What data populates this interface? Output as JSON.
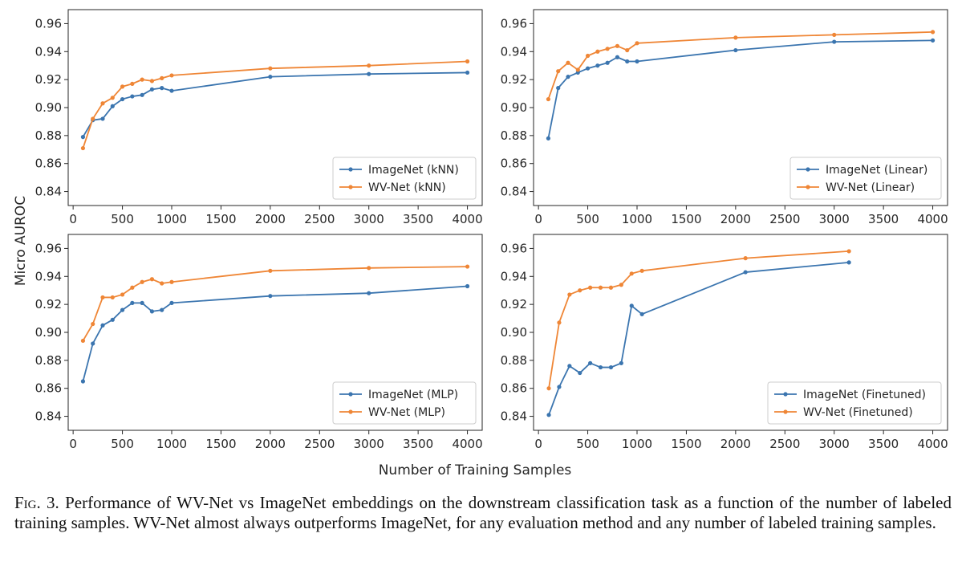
{
  "figure": {
    "shared_ylabel": "Micro AUROC",
    "shared_xlabel": "Number of Training Samples"
  },
  "colors": {
    "imagenet": "#3b75af",
    "wvnet": "#ef8636"
  },
  "caption": {
    "label": "Fig. 3.",
    "text": "Performance of WV-Net vs ImageNet embeddings on the downstream classification task as a function of the number of labeled training samples. WV-Net almost always outperforms ImageNet, for any evaluation method and any number of labeled training samples."
  },
  "chart_data": [
    {
      "type": "line",
      "panel": "top-left",
      "xlim": [
        -50,
        4150
      ],
      "ylim": [
        0.83,
        0.97
      ],
      "xticks": [
        0,
        500,
        1000,
        1500,
        2000,
        2500,
        3000,
        3500,
        4000
      ],
      "yticks": [
        0.84,
        0.86,
        0.88,
        0.9,
        0.92,
        0.94,
        0.96
      ],
      "legend_position": "lower-right",
      "series": [
        {
          "name": "ImageNet (kNN)",
          "color": "#3b75af",
          "x": [
            100,
            200,
            300,
            400,
            500,
            600,
            700,
            800,
            900,
            1000,
            2000,
            3000,
            4000
          ],
          "y": [
            0.879,
            0.891,
            0.892,
            0.901,
            0.906,
            0.908,
            0.909,
            0.913,
            0.914,
            0.912,
            0.922,
            0.924,
            0.925
          ]
        },
        {
          "name": "WV-Net (kNN)",
          "color": "#ef8636",
          "x": [
            100,
            200,
            300,
            400,
            500,
            600,
            700,
            800,
            900,
            1000,
            2000,
            3000,
            4000
          ],
          "y": [
            0.871,
            0.892,
            0.903,
            0.907,
            0.915,
            0.917,
            0.92,
            0.919,
            0.921,
            0.923,
            0.928,
            0.93,
            0.933
          ]
        }
      ]
    },
    {
      "type": "line",
      "panel": "top-right",
      "xlim": [
        -50,
        4150
      ],
      "ylim": [
        0.83,
        0.97
      ],
      "xticks": [
        0,
        500,
        1000,
        1500,
        2000,
        2500,
        3000,
        3500,
        4000
      ],
      "yticks": [
        0.84,
        0.86,
        0.88,
        0.9,
        0.92,
        0.94,
        0.96
      ],
      "legend_position": "lower-right",
      "series": [
        {
          "name": "ImageNet (Linear)",
          "color": "#3b75af",
          "x": [
            100,
            200,
            300,
            400,
            500,
            600,
            700,
            800,
            900,
            1000,
            2000,
            3000,
            4000
          ],
          "y": [
            0.878,
            0.914,
            0.922,
            0.925,
            0.928,
            0.93,
            0.932,
            0.936,
            0.933,
            0.933,
            0.941,
            0.947,
            0.948
          ]
        },
        {
          "name": "WV-Net (Linear)",
          "color": "#ef8636",
          "x": [
            100,
            200,
            300,
            400,
            500,
            600,
            700,
            800,
            900,
            1000,
            2000,
            3000,
            4000
          ],
          "y": [
            0.906,
            0.926,
            0.932,
            0.927,
            0.937,
            0.94,
            0.942,
            0.944,
            0.941,
            0.946,
            0.95,
            0.952,
            0.954
          ]
        }
      ]
    },
    {
      "type": "line",
      "panel": "bottom-left",
      "xlim": [
        -50,
        4150
      ],
      "ylim": [
        0.83,
        0.97
      ],
      "xticks": [
        0,
        500,
        1000,
        1500,
        2000,
        2500,
        3000,
        3500,
        4000
      ],
      "yticks": [
        0.84,
        0.86,
        0.88,
        0.9,
        0.92,
        0.94,
        0.96
      ],
      "legend_position": "lower-right",
      "series": [
        {
          "name": "ImageNet (MLP)",
          "color": "#3b75af",
          "x": [
            100,
            200,
            300,
            400,
            500,
            600,
            700,
            800,
            900,
            1000,
            2000,
            3000,
            4000
          ],
          "y": [
            0.865,
            0.892,
            0.905,
            0.909,
            0.916,
            0.921,
            0.921,
            0.915,
            0.916,
            0.921,
            0.926,
            0.928,
            0.933
          ]
        },
        {
          "name": "WV-Net (MLP)",
          "color": "#ef8636",
          "x": [
            100,
            200,
            300,
            400,
            500,
            600,
            700,
            800,
            900,
            1000,
            2000,
            3000,
            4000
          ],
          "y": [
            0.894,
            0.906,
            0.925,
            0.925,
            0.927,
            0.932,
            0.936,
            0.938,
            0.935,
            0.936,
            0.944,
            0.946,
            0.947
          ]
        }
      ]
    },
    {
      "type": "line",
      "panel": "bottom-right",
      "xlim": [
        -50,
        4150
      ],
      "ylim": [
        0.83,
        0.97
      ],
      "xticks": [
        0,
        500,
        1000,
        1500,
        2000,
        2500,
        3000,
        3500,
        4000
      ],
      "yticks": [
        0.84,
        0.86,
        0.88,
        0.9,
        0.92,
        0.94,
        0.96
      ],
      "legend_position": "lower-right",
      "series": [
        {
          "name": "ImageNet (Finetuned)",
          "color": "#3b75af",
          "x": [
            105,
            210,
            315,
            420,
            525,
            630,
            735,
            840,
            945,
            1050,
            2100,
            3150
          ],
          "y": [
            0.841,
            0.861,
            0.876,
            0.871,
            0.878,
            0.875,
            0.875,
            0.878,
            0.919,
            0.913,
            0.943,
            0.95
          ]
        },
        {
          "name": "WV-Net (Finetuned)",
          "color": "#ef8636",
          "x": [
            105,
            210,
            315,
            420,
            525,
            630,
            735,
            840,
            945,
            1050,
            2100,
            3150
          ],
          "y": [
            0.86,
            0.907,
            0.927,
            0.93,
            0.932,
            0.932,
            0.932,
            0.934,
            0.942,
            0.944,
            0.953,
            0.958
          ]
        }
      ]
    }
  ]
}
